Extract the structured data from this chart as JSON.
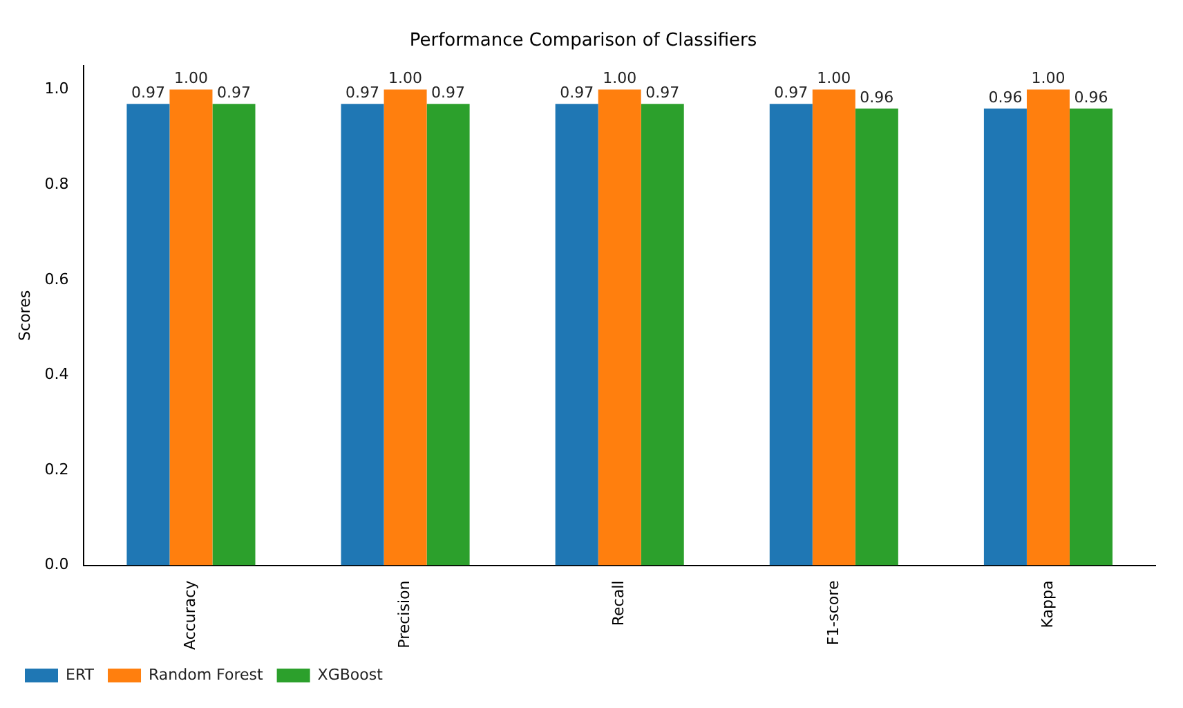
{
  "chart_data": {
    "type": "bar",
    "title": "Performance Comparison of Classifiers",
    "ylabel": "Scores",
    "categories": [
      "Accuracy",
      "Precision",
      "Recall",
      "F1-score",
      "Kappa"
    ],
    "series": [
      {
        "name": "ERT",
        "color": "#1f77b4",
        "values": [
          0.97,
          0.97,
          0.97,
          0.97,
          0.96
        ],
        "value_labels": [
          "0.97",
          "0.97",
          "0.97",
          "0.97",
          "0.96"
        ]
      },
      {
        "name": "Random Forest",
        "color": "#ff7f0e",
        "values": [
          1.0,
          1.0,
          1.0,
          1.0,
          1.0
        ],
        "value_labels": [
          "1.00",
          "1.00",
          "1.00",
          "1.00",
          "1.00"
        ]
      },
      {
        "name": "XGBoost",
        "color": "#2ca02c",
        "values": [
          0.97,
          0.97,
          0.97,
          0.96,
          0.96
        ],
        "value_labels": [
          "0.97",
          "0.97",
          "0.97",
          "0.96",
          "0.96"
        ]
      }
    ],
    "ylim": [
      0,
      1.05
    ],
    "yticks": [
      {
        "value": 0,
        "label": "0.0"
      },
      {
        "value": 0.2,
        "label": "0.2"
      },
      {
        "value": 0.4,
        "label": "0.4"
      },
      {
        "value": 0.6,
        "label": "0.6"
      },
      {
        "value": 0.8,
        "label": "0.8"
      },
      {
        "value": 1.0,
        "label": "1.0"
      }
    ],
    "grid": false,
    "legend": "bottom left"
  }
}
